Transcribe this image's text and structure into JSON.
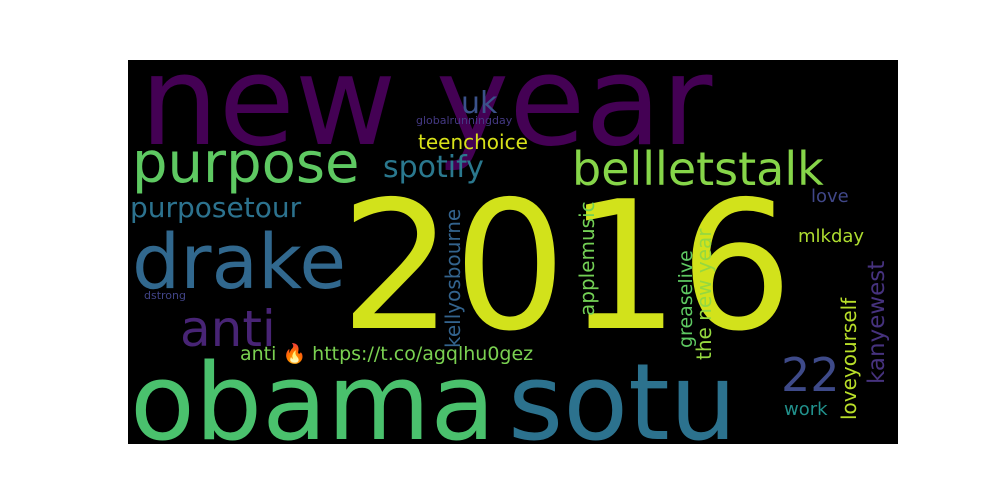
{
  "wordcloud": {
    "words": [
      {
        "text": "new year",
        "color": "#440154"
      },
      {
        "text": "2016",
        "color": "#d2e21b"
      },
      {
        "text": "obama",
        "color": "#4ac16d"
      },
      {
        "text": "sotu",
        "color": "#2c728e"
      },
      {
        "text": "drake",
        "color": "#31688e"
      },
      {
        "text": "purpose",
        "color": "#5ec962"
      },
      {
        "text": "bellletstalk",
        "color": "#86d549"
      },
      {
        "text": "anti",
        "color": "#482475"
      },
      {
        "text": "spotify",
        "color": "#2a788e"
      },
      {
        "text": "uk",
        "color": "#3b528b"
      },
      {
        "text": "teenchoice",
        "color": "#d8e219"
      },
      {
        "text": "purposetour",
        "color": "#2c728e"
      },
      {
        "text": "globalrunningday",
        "color": "#443983"
      },
      {
        "text": "love",
        "color": "#404788"
      },
      {
        "text": "mlkday",
        "color": "#addc30"
      },
      {
        "text": "22",
        "color": "#3e4a89"
      },
      {
        "text": "anti 🔥 https://t.co/agqlhu0gez",
        "color": "#7ad151"
      },
      {
        "text": "dstrong",
        "color": "#414487"
      },
      {
        "text": "work",
        "color": "#21918c"
      },
      {
        "text": "kellyosbourne",
        "color": "#33638d"
      },
      {
        "text": "applemusic",
        "color": "#73d055"
      },
      {
        "text": "greaselive",
        "color": "#5ec962"
      },
      {
        "text": "the new year",
        "color": "#95d840"
      },
      {
        "text": "loveyourself",
        "color": "#b8de29"
      },
      {
        "text": "kanyewest",
        "color": "#46327e"
      }
    ]
  }
}
